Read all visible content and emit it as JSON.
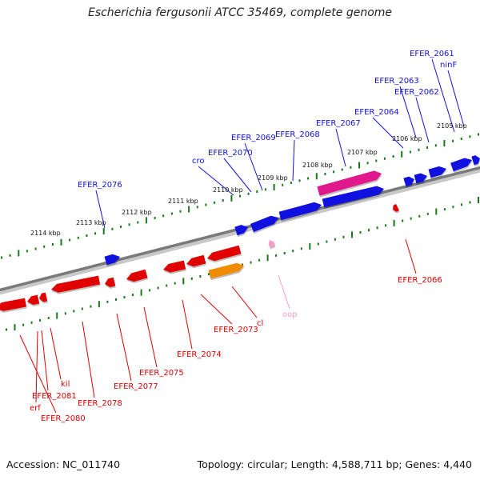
{
  "title": "Escherichia fergusonii ATCC 35469, complete genome",
  "footer": {
    "accession": "Accession: NC_011740",
    "summary": "Topology: circular; Length: 4,588,711 bp; Genes: 4,440"
  },
  "colors": {
    "forward": "#1010e0",
    "reverse": "#e00000",
    "magenta": "#e0188c",
    "orange": "#f08c00",
    "pink": "#f2a0c8",
    "backbone": "#808080",
    "tick": "#1a7a1a"
  },
  "kbp_labels": [
    "2105 kbp",
    "2106 kbp",
    "2107 kbp",
    "2108 kbp",
    "2109 kbp",
    "2110 kbp",
    "2111 kbp",
    "2112 kbp",
    "2113 kbp",
    "2114 kbp"
  ],
  "forward_labels": [
    "EFER_2061",
    "ninF",
    "EFER_2063",
    "EFER_2062",
    "EFER_2064",
    "EFER_2067",
    "EFER_2068",
    "EFER_2069",
    "EFER_2070",
    "cro",
    "EFER_2076"
  ],
  "reverse_labels": [
    "EFER_2066",
    "oop",
    "cl",
    "EFER_2073",
    "EFER_2074",
    "EFER_2075",
    "EFER_2077",
    "EFER_2078",
    "kil",
    "EFER_2081",
    "erf",
    "EFER_2080"
  ]
}
